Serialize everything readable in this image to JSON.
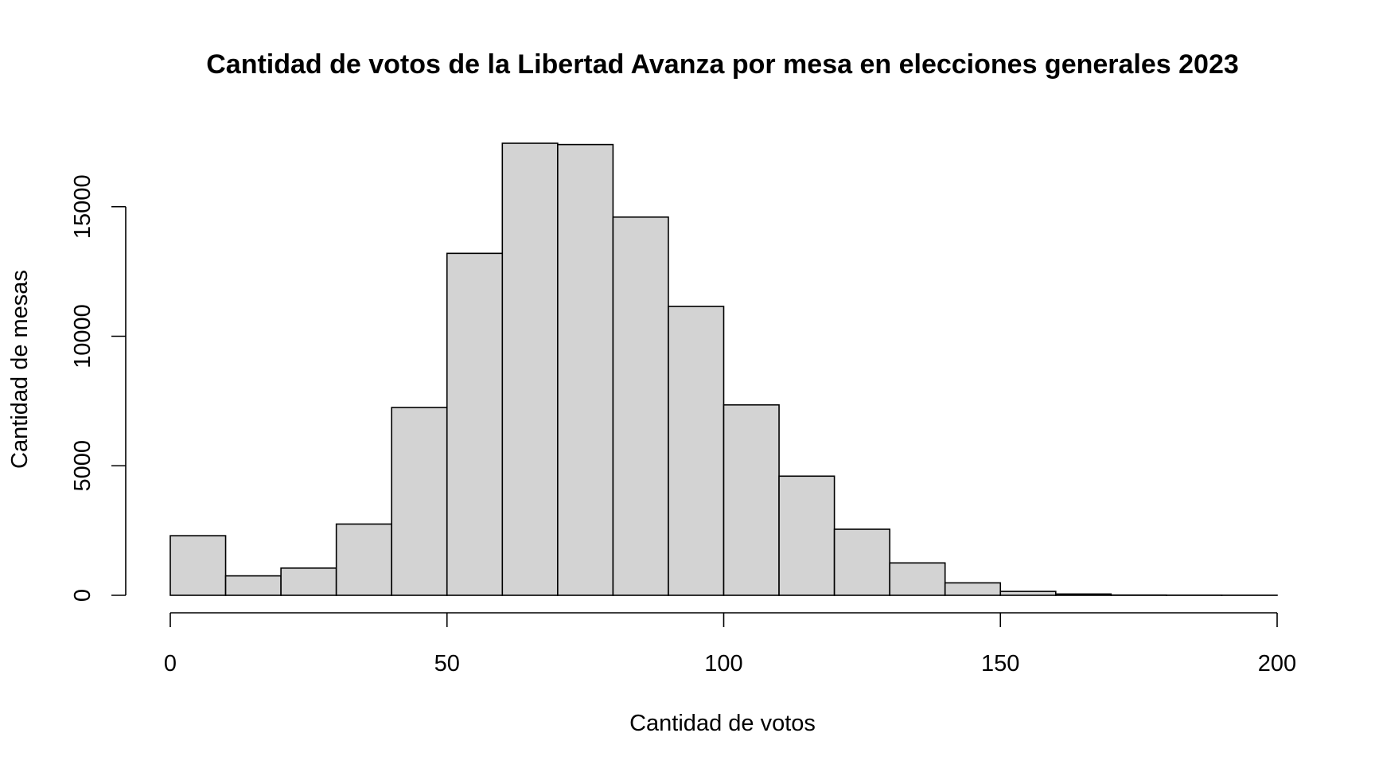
{
  "chart_data": {
    "type": "bar",
    "title": "Cantidad de votos de la Libertad Avanza por mesa en elecciones generales 2023",
    "xlabel": "Cantidad de votos",
    "ylabel": "Cantidad de mesas",
    "bins": [
      {
        "from": 0,
        "to": 10,
        "count": 2300
      },
      {
        "from": 10,
        "to": 20,
        "count": 750
      },
      {
        "from": 20,
        "to": 30,
        "count": 1050
      },
      {
        "from": 30,
        "to": 40,
        "count": 2750
      },
      {
        "from": 40,
        "to": 50,
        "count": 7250
      },
      {
        "from": 50,
        "to": 60,
        "count": 13200
      },
      {
        "from": 60,
        "to": 70,
        "count": 17450
      },
      {
        "from": 70,
        "to": 80,
        "count": 17400
      },
      {
        "from": 80,
        "to": 90,
        "count": 14600
      },
      {
        "from": 90,
        "to": 100,
        "count": 11150
      },
      {
        "from": 100,
        "to": 110,
        "count": 7350
      },
      {
        "from": 110,
        "to": 120,
        "count": 4600
      },
      {
        "from": 120,
        "to": 130,
        "count": 2550
      },
      {
        "from": 130,
        "to": 140,
        "count": 1250
      },
      {
        "from": 140,
        "to": 150,
        "count": 480
      },
      {
        "from": 150,
        "to": 160,
        "count": 150
      },
      {
        "from": 160,
        "to": 170,
        "count": 50
      },
      {
        "from": 170,
        "to": 180,
        "count": 10
      },
      {
        "from": 180,
        "to": 190,
        "count": 5
      },
      {
        "from": 190,
        "to": 200,
        "count": 3
      }
    ],
    "xlim": [
      0,
      200
    ],
    "ylim": [
      0,
      17450
    ],
    "xticks": [
      0,
      50,
      100,
      150,
      200
    ],
    "xtick_labels": [
      "0",
      "50",
      "100",
      "150",
      "200"
    ],
    "yticks": [
      0,
      5000,
      10000,
      15000
    ],
    "ytick_labels": [
      "0",
      "5000",
      "10000",
      "15000"
    ],
    "bar_fill": "#d3d3d3",
    "bar_stroke": "#000000",
    "grid": false,
    "legend": "none"
  }
}
